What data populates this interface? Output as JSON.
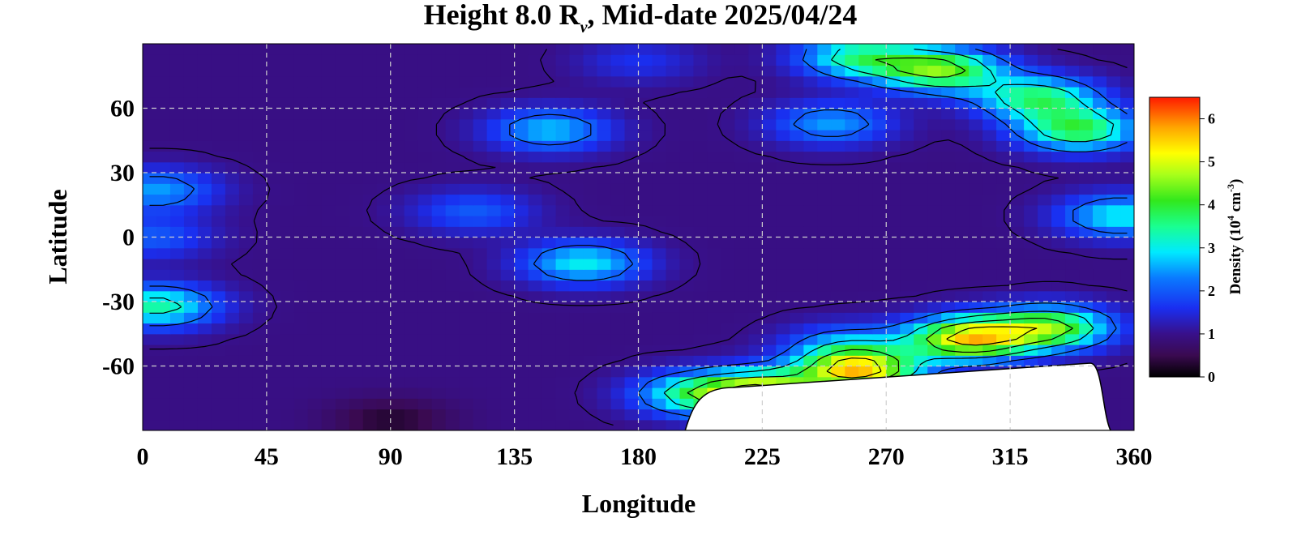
{
  "chart_data": {
    "type": "heatmap",
    "title_main": "Height 8.0 R",
    "title_sub": "v",
    "title_rest": ", Mid-date 2025/04/24",
    "xlabel": "Longitude",
    "ylabel": "Latitude",
    "xlim": [
      0,
      360
    ],
    "ylim": [
      -90,
      90
    ],
    "x_ticks": [
      {
        "value": 0,
        "label": "0"
      },
      {
        "value": 45,
        "label": "45"
      },
      {
        "value": 90,
        "label": "90"
      },
      {
        "value": 135,
        "label": "135"
      },
      {
        "value": 180,
        "label": "180"
      },
      {
        "value": 225,
        "label": "225"
      },
      {
        "value": 270,
        "label": "270"
      },
      {
        "value": 315,
        "label": "315"
      },
      {
        "value": 360,
        "label": "360"
      }
    ],
    "y_ticks": [
      {
        "value": 60,
        "label": "60"
      },
      {
        "value": 30,
        "label": "30"
      },
      {
        "value": 0,
        "label": "0"
      },
      {
        "value": -30,
        "label": "-30"
      },
      {
        "value": -60,
        "label": "-60"
      }
    ],
    "grid": true,
    "colorbar": {
      "label_prefix": "Density (10",
      "label_exp1": "4",
      "label_mid": " cm",
      "label_exp2": "-3",
      "label_suffix": ")",
      "range": [
        0,
        6.5
      ],
      "ticks": [
        {
          "value": 0,
          "label": "0"
        },
        {
          "value": 1,
          "label": "1"
        },
        {
          "value": 2,
          "label": "2"
        },
        {
          "value": 3,
          "label": "3"
        },
        {
          "value": 4,
          "label": "4"
        },
        {
          "value": 5,
          "label": "5"
        },
        {
          "value": 6,
          "label": "6"
        }
      ],
      "stops": [
        {
          "v": 0,
          "c": "#000000"
        },
        {
          "v": 0.5,
          "c": "#3a0a50"
        },
        {
          "v": 1.0,
          "c": "#38108a"
        },
        {
          "v": 1.6,
          "c": "#1a2ef0"
        },
        {
          "v": 2.3,
          "c": "#0a7aff"
        },
        {
          "v": 2.9,
          "c": "#00eaff"
        },
        {
          "v": 3.5,
          "c": "#1aff90"
        },
        {
          "v": 4.1,
          "c": "#32e81c"
        },
        {
          "v": 4.7,
          "c": "#a8ff1a"
        },
        {
          "v": 5.2,
          "c": "#ffff00"
        },
        {
          "v": 5.8,
          "c": "#ffa500"
        },
        {
          "v": 6.5,
          "c": "#ff1a00"
        }
      ],
      "placement": "right"
    },
    "density_features": [
      {
        "name": "base",
        "lon": 180,
        "lat": 0,
        "value": 0.95
      },
      {
        "name": "north-band",
        "lon": 180,
        "lat": 82,
        "value": 1.6
      },
      {
        "name": "east-polar-band-1",
        "lon": 290,
        "lat": 78,
        "value": 4.3
      },
      {
        "name": "east-polar-band-2",
        "lon": 260,
        "lat": 84,
        "value": 3.4
      },
      {
        "name": "east-polar-band-3",
        "lon": 325,
        "lat": 65,
        "value": 3.6
      },
      {
        "name": "east-polar-band-4",
        "lon": 340,
        "lat": 50,
        "value": 3.8
      },
      {
        "name": "band-60-east",
        "lon": 250,
        "lat": 53,
        "value": 2.5
      },
      {
        "name": "blob-145N",
        "lon": 148,
        "lat": 50,
        "value": 2.7
      },
      {
        "name": "blob-160S",
        "lon": 160,
        "lat": -12,
        "value": 3.0
      },
      {
        "name": "blob-358",
        "lon": 355,
        "lat": 10,
        "value": 3.0
      },
      {
        "name": "blob-5N",
        "lon": 5,
        "lat": 22,
        "value": 2.5
      },
      {
        "name": "blob-10S",
        "lon": 5,
        "lat": -32,
        "value": 3.4
      },
      {
        "name": "blob-0",
        "lon": 3,
        "lat": 0,
        "value": 2.0
      },
      {
        "name": "mid-band",
        "lon": 120,
        "lat": 12,
        "value": 2.0
      },
      {
        "name": "south-band-1",
        "lon": 300,
        "lat": -47,
        "value": 5.3
      },
      {
        "name": "south-band-2",
        "lon": 260,
        "lat": -62,
        "value": 5.3
      },
      {
        "name": "south-band-3",
        "lon": 225,
        "lat": -72,
        "value": 4.8
      },
      {
        "name": "south-band-4",
        "lon": 200,
        "lat": -73,
        "value": 3.2
      },
      {
        "name": "south-band-5",
        "lon": 330,
        "lat": -42,
        "value": 4.2
      },
      {
        "name": "south-band-6",
        "lon": 255,
        "lat": -50,
        "value": 2.3
      },
      {
        "name": "south-polar",
        "lon": 90,
        "lat": -85,
        "value": 0.3
      }
    ],
    "no_data_region": {
      "lon_range": [
        197,
        350
      ],
      "lat_top": -70
    }
  }
}
